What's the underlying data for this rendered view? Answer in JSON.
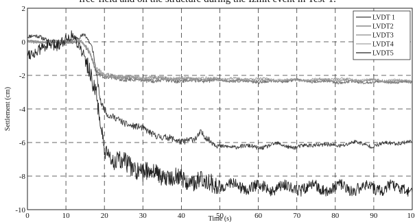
{
  "caption": "free-field and on the structure during the Izmit event in Test-1.",
  "chart_data": {
    "type": "line",
    "xlabel": "Time (s)",
    "ylabel": "Settlement (cm)",
    "xlim": [
      0,
      100
    ],
    "ylim": [
      -10,
      2
    ],
    "xticks": [
      "0",
      "10",
      "20",
      "30",
      "40",
      "50",
      "60",
      "70",
      "80",
      "90",
      "10"
    ],
    "yticks": [
      "2",
      "0",
      "-2",
      "-4",
      "-6",
      "-8",
      "-10"
    ],
    "grid": "dashed",
    "legend_position": "top-right",
    "series": [
      {
        "name": "LVDT 1",
        "color": "#3a3a3a",
        "x": [
          0,
          3,
          6,
          9,
          12,
          15,
          17,
          19,
          21,
          25,
          30,
          35,
          40,
          44,
          45,
          50,
          55,
          60,
          65,
          70,
          75,
          80,
          85,
          90,
          95,
          100
        ],
        "y": [
          0.3,
          0.3,
          0.1,
          -0.1,
          0.2,
          0.4,
          -0.5,
          -3.5,
          -4.4,
          -4.8,
          -5.2,
          -5.7,
          -5.9,
          -5.8,
          -5.4,
          -6.3,
          -6.2,
          -6.3,
          -6.1,
          -6.3,
          -6.1,
          -6.2,
          -6.0,
          -6.2,
          -6.0,
          -6.0
        ],
        "amp": 0.12,
        "seed": 11
      },
      {
        "name": "LVDT2",
        "color": "#707070",
        "x": [
          0,
          5,
          10,
          14,
          16,
          18,
          20,
          25,
          30,
          40,
          50,
          60,
          70,
          80,
          90,
          100
        ],
        "y": [
          0,
          0,
          0,
          0,
          -0.6,
          -1.8,
          -2.1,
          -2.2,
          -2.3,
          -2.3,
          -2.3,
          -2.4,
          -2.3,
          -2.4,
          -2.4,
          -2.4
        ],
        "amp": 0.08,
        "seed": 22
      },
      {
        "name": "LVDT3",
        "color": "#8a8a8a",
        "x": [
          0,
          5,
          10,
          14,
          16,
          18,
          20,
          25,
          30,
          40,
          50,
          60,
          70,
          80,
          90,
          100
        ],
        "y": [
          0,
          0,
          0,
          0,
          -0.5,
          -1.7,
          -2.0,
          -2.1,
          -2.2,
          -2.2,
          -2.3,
          -2.3,
          -2.3,
          -2.3,
          -2.3,
          -2.4
        ],
        "amp": 0.08,
        "seed": 33
      },
      {
        "name": "LVDT4",
        "color": "#a0a0a0",
        "x": [
          0,
          5,
          10,
          14,
          16,
          18,
          20,
          25,
          30,
          40,
          50,
          60,
          70,
          80,
          90,
          100
        ],
        "y": [
          0,
          0,
          0.1,
          0,
          -0.5,
          -1.6,
          -2.0,
          -2.1,
          -2.1,
          -2.2,
          -2.2,
          -2.2,
          -2.3,
          -2.2,
          -2.3,
          -2.3
        ],
        "amp": 0.07,
        "seed": 44
      },
      {
        "name": "LVDT5",
        "color": "#202020",
        "x": [
          0,
          3,
          6,
          9,
          12,
          14,
          16,
          18,
          19,
          20,
          22,
          25,
          30,
          35,
          40,
          45,
          50,
          55,
          60,
          70,
          80,
          90,
          100
        ],
        "y": [
          -0.5,
          -0.6,
          -0.2,
          0.1,
          0.2,
          -0.3,
          -1.5,
          -3.5,
          -5.0,
          -6.6,
          -6.9,
          -7.3,
          -7.7,
          -7.9,
          -8.2,
          -8.3,
          -8.5,
          -8.6,
          -8.7,
          -8.7,
          -8.7,
          -8.7,
          -8.7
        ],
        "amp": 0.35,
        "seed": 55
      }
    ]
  }
}
